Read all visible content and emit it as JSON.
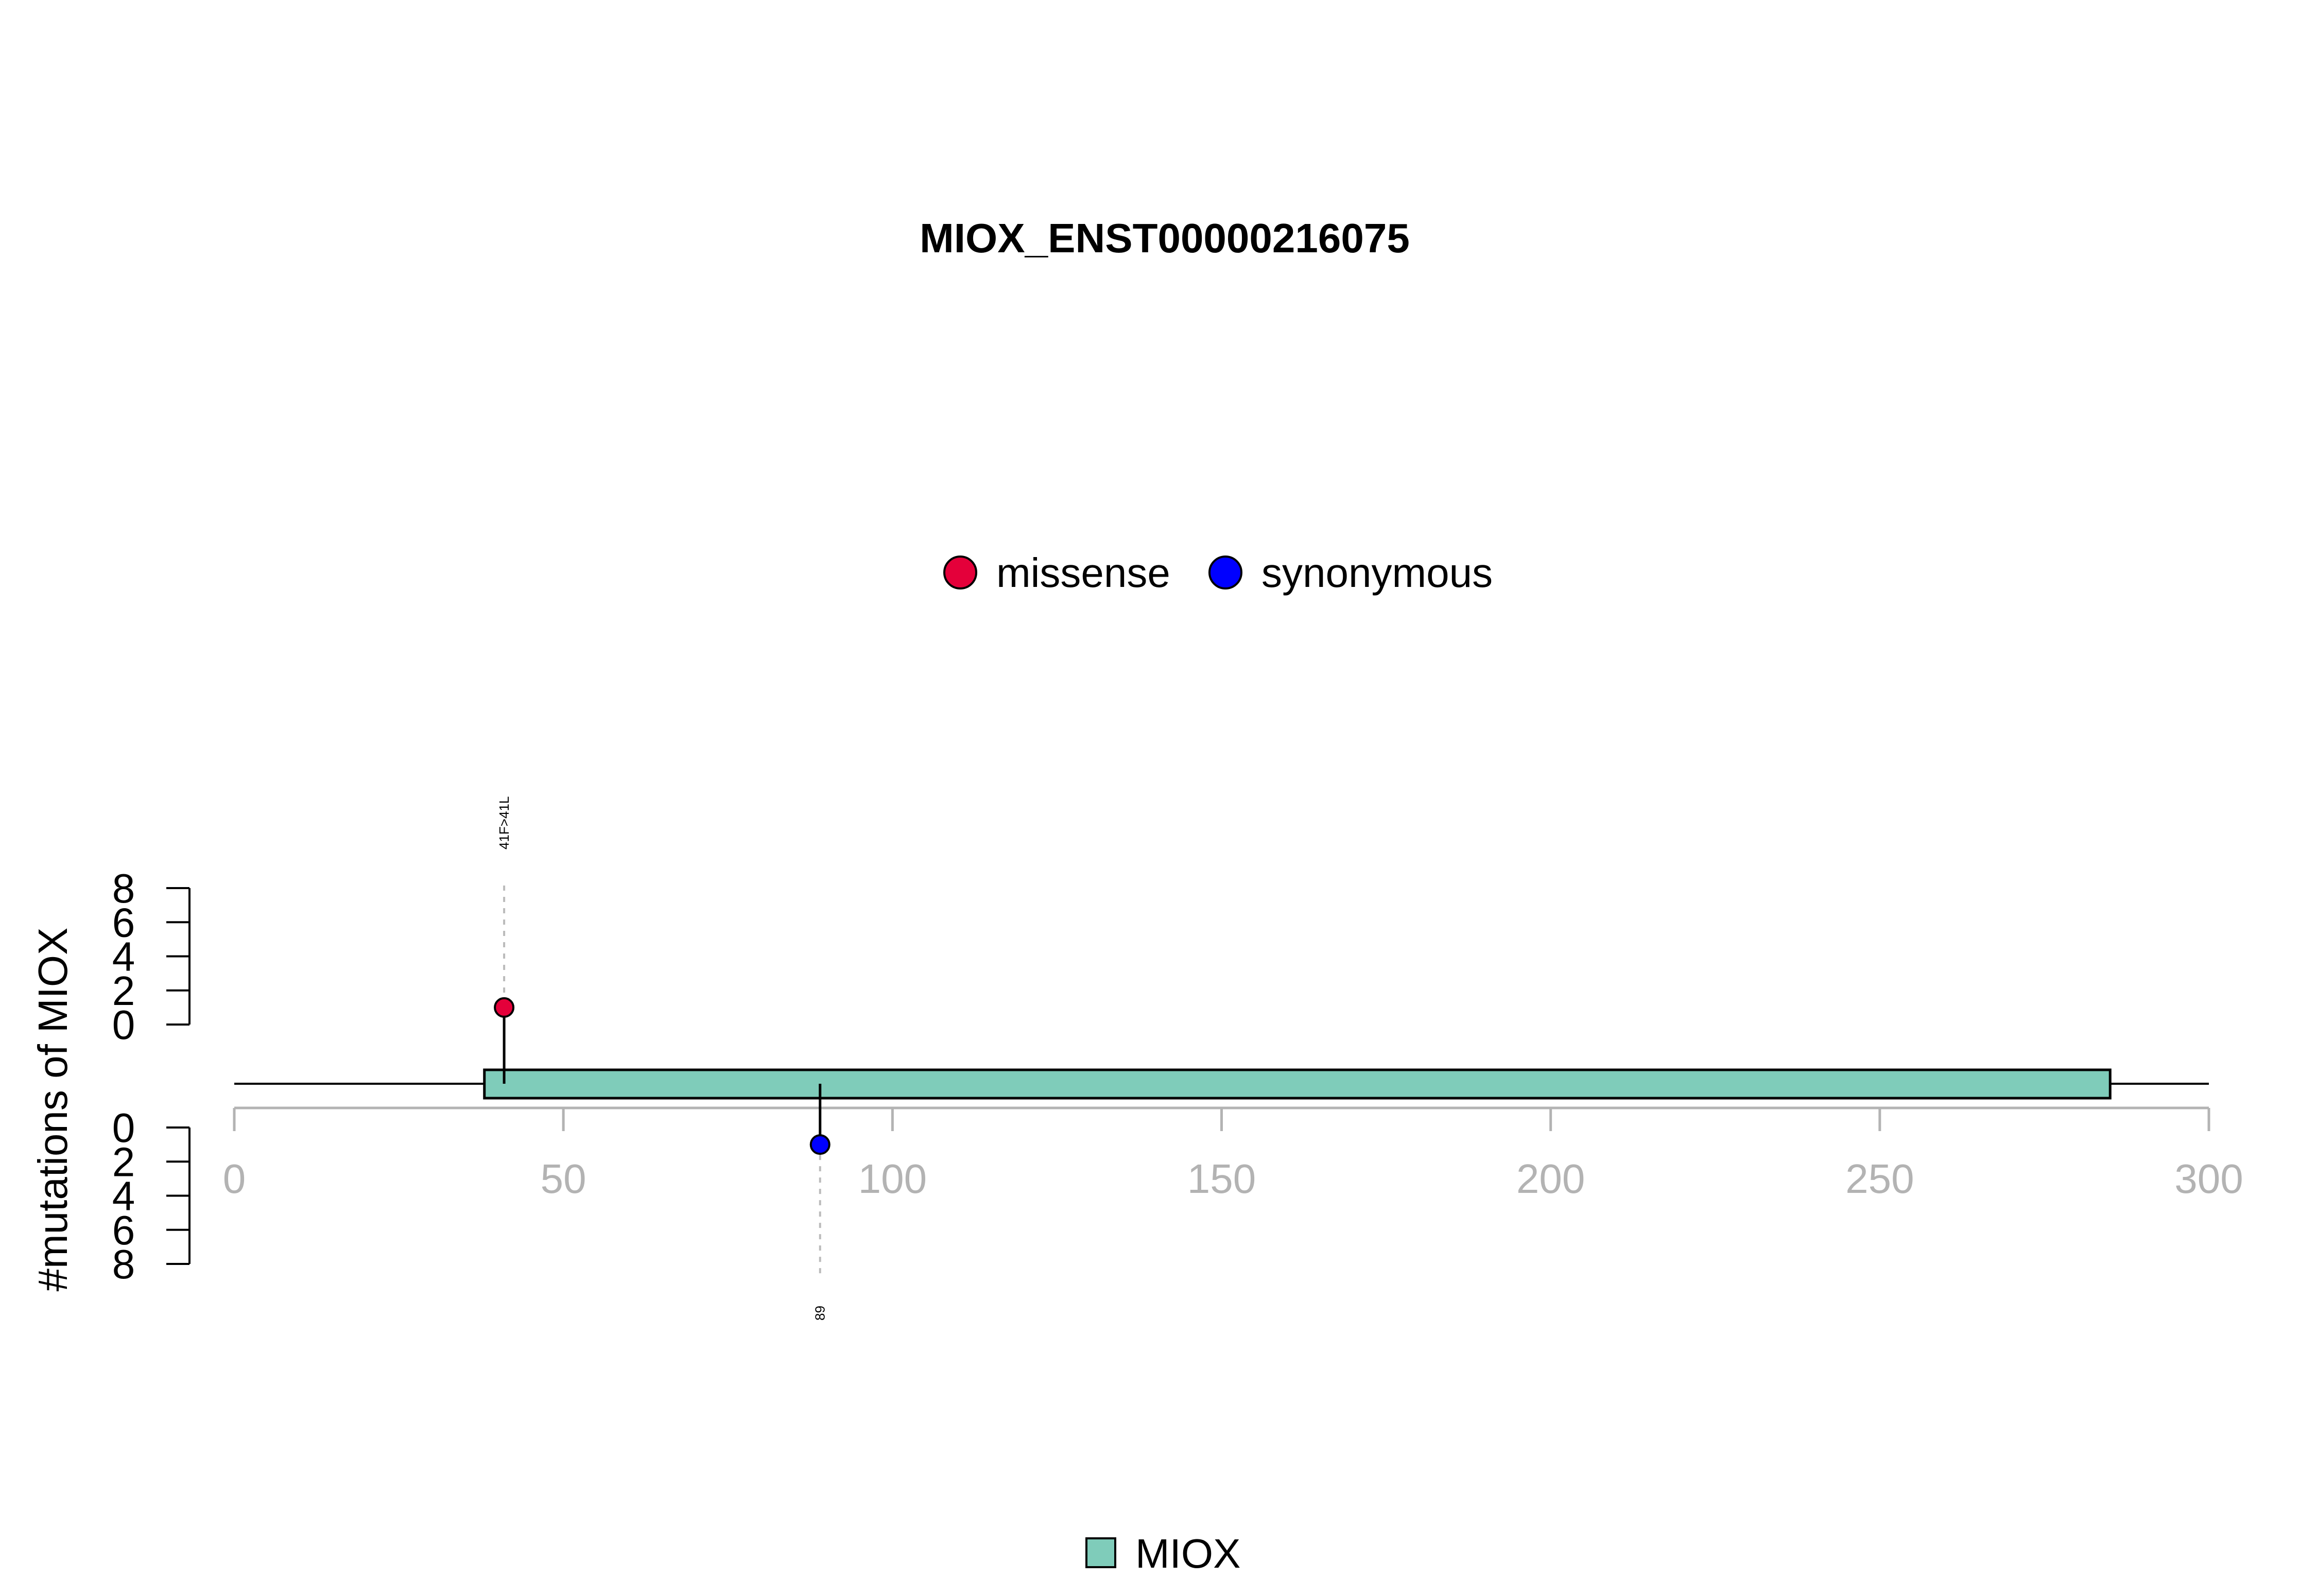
{
  "chart_data": {
    "type": "lollipop",
    "title": "MIOX_ENST00000216075",
    "ylabel": "#mutations of MIOX",
    "xlim": [
      0,
      300
    ],
    "xticks": [
      0,
      50,
      100,
      150,
      200,
      250,
      300
    ],
    "ylim_upper": [
      0,
      8
    ],
    "ylim_lower": [
      0,
      8
    ],
    "yticks": [
      0,
      2,
      4,
      6,
      8
    ],
    "mutation_legend": [
      {
        "name": "missense",
        "color": "#e4003a"
      },
      {
        "name": "synonymous",
        "color": "#0000ff"
      }
    ],
    "mutations": [
      {
        "position": 41,
        "count": 1,
        "type": "missense",
        "color": "#e4003a",
        "label": "41F>41L",
        "side": "top"
      },
      {
        "position": 89,
        "count": 1,
        "type": "synonymous",
        "color": "#0000ff",
        "label": "89",
        "side": "bottom"
      }
    ],
    "domains": [
      {
        "name": "MIOX",
        "start": 38,
        "end": 285,
        "color": "#7fccba"
      }
    ],
    "backbone": [
      0,
      300
    ],
    "grid": false
  }
}
